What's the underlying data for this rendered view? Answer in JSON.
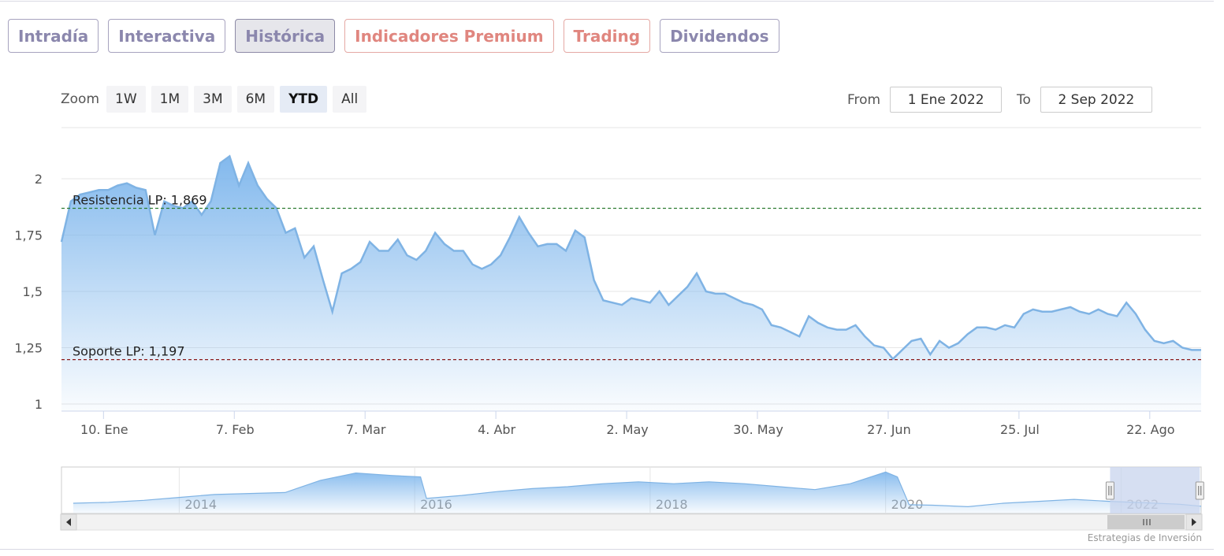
{
  "tabs": [
    {
      "label": "Intradía",
      "variant": "normal"
    },
    {
      "label": "Interactiva",
      "variant": "normal"
    },
    {
      "label": "Histórica",
      "variant": "active"
    },
    {
      "label": "Indicadores Premium",
      "variant": "premium"
    },
    {
      "label": "Trading",
      "variant": "premium"
    },
    {
      "label": "Dividendos",
      "variant": "normal"
    }
  ],
  "zoom": {
    "label": "Zoom",
    "buttons": [
      "1W",
      "1M",
      "3M",
      "6M",
      "YTD",
      "All"
    ],
    "selected": "YTD"
  },
  "range": {
    "from_label": "From",
    "from_value": "1 Ene 2022",
    "to_label": "To",
    "to_value": "2 Sep 2022"
  },
  "credits": "Estrategias de Inversión",
  "colors": {
    "line": "#7fb3e4",
    "area_top": "#7cb5ec",
    "resistance": "#2e7d32",
    "support": "#8b1a1a",
    "navigator_mask": "#c8d4ee"
  },
  "chart_data": {
    "type": "area",
    "title": "",
    "xlabel": "",
    "ylabel": "",
    "ylim": [
      1,
      2.1
    ],
    "x_range": [
      "2022-01-01",
      "2022-09-02"
    ],
    "y_ticks": [
      "1",
      "1,25",
      "1,5",
      "1,75",
      "2"
    ],
    "y_tick_values": [
      1,
      1.25,
      1.5,
      1.75,
      2
    ],
    "x_ticks": [
      {
        "date": "2022-01-10",
        "label": "10. Ene"
      },
      {
        "date": "2022-02-07",
        "label": "7. Feb"
      },
      {
        "date": "2022-03-07",
        "label": "7. Mar"
      },
      {
        "date": "2022-04-04",
        "label": "4. Abr"
      },
      {
        "date": "2022-05-02",
        "label": "2. May"
      },
      {
        "date": "2022-05-30",
        "label": "30. May"
      },
      {
        "date": "2022-06-27",
        "label": "27. Jun"
      },
      {
        "date": "2022-07-25",
        "label": "25. Jul"
      },
      {
        "date": "2022-08-22",
        "label": "22. Ago"
      }
    ],
    "series": [
      {
        "x": [
          "2022-01-01",
          "2022-01-03",
          "2022-01-05",
          "2022-01-07",
          "2022-01-09",
          "2022-01-11",
          "2022-01-13",
          "2022-01-15",
          "2022-01-17",
          "2022-01-19",
          "2022-01-21",
          "2022-01-23",
          "2022-01-25",
          "2022-01-27",
          "2022-01-29",
          "2022-01-31",
          "2022-02-02",
          "2022-02-04",
          "2022-02-06",
          "2022-02-08",
          "2022-02-10",
          "2022-02-12",
          "2022-02-14",
          "2022-02-16",
          "2022-02-18",
          "2022-02-20",
          "2022-02-22",
          "2022-02-24",
          "2022-02-26",
          "2022-02-28",
          "2022-03-02",
          "2022-03-04",
          "2022-03-06",
          "2022-03-08",
          "2022-03-10",
          "2022-03-12",
          "2022-03-14",
          "2022-03-16",
          "2022-03-18",
          "2022-03-20",
          "2022-03-22",
          "2022-03-24",
          "2022-03-26",
          "2022-03-28",
          "2022-03-30",
          "2022-04-01",
          "2022-04-03",
          "2022-04-05",
          "2022-04-07",
          "2022-04-09",
          "2022-04-11",
          "2022-04-13",
          "2022-04-15",
          "2022-04-17",
          "2022-04-19",
          "2022-04-21",
          "2022-04-23",
          "2022-04-25",
          "2022-04-27",
          "2022-04-29",
          "2022-05-01",
          "2022-05-03",
          "2022-05-05",
          "2022-05-07",
          "2022-05-09",
          "2022-05-11",
          "2022-05-13",
          "2022-05-15",
          "2022-05-17",
          "2022-05-19",
          "2022-05-21",
          "2022-05-23",
          "2022-05-25",
          "2022-05-27",
          "2022-05-29",
          "2022-05-31",
          "2022-06-02",
          "2022-06-04",
          "2022-06-06",
          "2022-06-08",
          "2022-06-10",
          "2022-06-12",
          "2022-06-14",
          "2022-06-16",
          "2022-06-18",
          "2022-06-20",
          "2022-06-22",
          "2022-06-24",
          "2022-06-26",
          "2022-06-28",
          "2022-06-30",
          "2022-07-02",
          "2022-07-04",
          "2022-07-06",
          "2022-07-08",
          "2022-07-10",
          "2022-07-12",
          "2022-07-14",
          "2022-07-16",
          "2022-07-18",
          "2022-07-20",
          "2022-07-22",
          "2022-07-24",
          "2022-07-26",
          "2022-07-28",
          "2022-07-30",
          "2022-08-01",
          "2022-08-03",
          "2022-08-05",
          "2022-08-07",
          "2022-08-09",
          "2022-08-11",
          "2022-08-13",
          "2022-08-15",
          "2022-08-17",
          "2022-08-19",
          "2022-08-21",
          "2022-08-23",
          "2022-08-25",
          "2022-08-27",
          "2022-08-29",
          "2022-08-31",
          "2022-09-02"
        ],
        "y": [
          1.72,
          1.9,
          1.93,
          1.94,
          1.95,
          1.95,
          1.97,
          1.98,
          1.96,
          1.95,
          1.75,
          1.9,
          1.88,
          1.87,
          1.9,
          1.84,
          1.9,
          2.07,
          2.1,
          1.97,
          2.07,
          1.97,
          1.91,
          1.87,
          1.76,
          1.78,
          1.65,
          1.7,
          1.55,
          1.41,
          1.58,
          1.6,
          1.63,
          1.72,
          1.68,
          1.68,
          1.73,
          1.66,
          1.64,
          1.68,
          1.76,
          1.71,
          1.68,
          1.68,
          1.62,
          1.6,
          1.62,
          1.66,
          1.74,
          1.83,
          1.76,
          1.7,
          1.71,
          1.71,
          1.68,
          1.77,
          1.74,
          1.55,
          1.46,
          1.45,
          1.44,
          1.47,
          1.46,
          1.45,
          1.5,
          1.44,
          1.48,
          1.52,
          1.58,
          1.5,
          1.49,
          1.49,
          1.47,
          1.45,
          1.44,
          1.42,
          1.35,
          1.34,
          1.32,
          1.3,
          1.39,
          1.36,
          1.34,
          1.33,
          1.33,
          1.35,
          1.3,
          1.26,
          1.25,
          1.2,
          1.24,
          1.28,
          1.29,
          1.22,
          1.28,
          1.25,
          1.27,
          1.31,
          1.34,
          1.34,
          1.33,
          1.35,
          1.34,
          1.4,
          1.42,
          1.41,
          1.41,
          1.42,
          1.43,
          1.41,
          1.4,
          1.42,
          1.4,
          1.39,
          1.45,
          1.4,
          1.33,
          1.28,
          1.27,
          1.28,
          1.25,
          1.24,
          1.24
        ]
      }
    ],
    "plot_lines": [
      {
        "label": "Resistencia LP: 1,869",
        "value": 1.869,
        "style": "dashed"
      },
      {
        "label": "Soporte LP: 1,197",
        "value": 1.197,
        "style": "dashed"
      }
    ],
    "navigator": {
      "x_ticks": [
        "2014",
        "2016",
        "2018",
        "2020",
        "2022"
      ],
      "x_tick_years": [
        2014,
        2016,
        2018,
        2020,
        2022
      ],
      "x_range": [
        2013.0,
        2022.68
      ],
      "selection": [
        "2022-01-01",
        "2022-09-02"
      ],
      "series_years": [
        2013.1,
        2013.4,
        2013.7,
        2014.0,
        2014.3,
        2014.6,
        2014.9,
        2015.2,
        2015.5,
        2015.8,
        2016.05,
        2016.1,
        2016.4,
        2016.7,
        2017.0,
        2017.3,
        2017.6,
        2017.9,
        2018.2,
        2018.5,
        2018.8,
        2019.1,
        2019.4,
        2019.7,
        2020.0,
        2020.1,
        2020.2,
        2020.4,
        2020.7,
        2021.0,
        2021.3,
        2021.6,
        2021.9,
        2022.2,
        2022.5,
        2022.68
      ],
      "series_values": [
        0.08,
        0.1,
        0.14,
        0.2,
        0.26,
        0.28,
        0.3,
        0.55,
        0.7,
        0.65,
        0.62,
        0.18,
        0.24,
        0.32,
        0.38,
        0.42,
        0.48,
        0.52,
        0.48,
        0.52,
        0.48,
        0.42,
        0.36,
        0.48,
        0.72,
        0.62,
        0.05,
        0.04,
        0.01,
        0.08,
        0.12,
        0.16,
        0.12,
        0.09,
        0.06,
        0.02
      ]
    }
  }
}
